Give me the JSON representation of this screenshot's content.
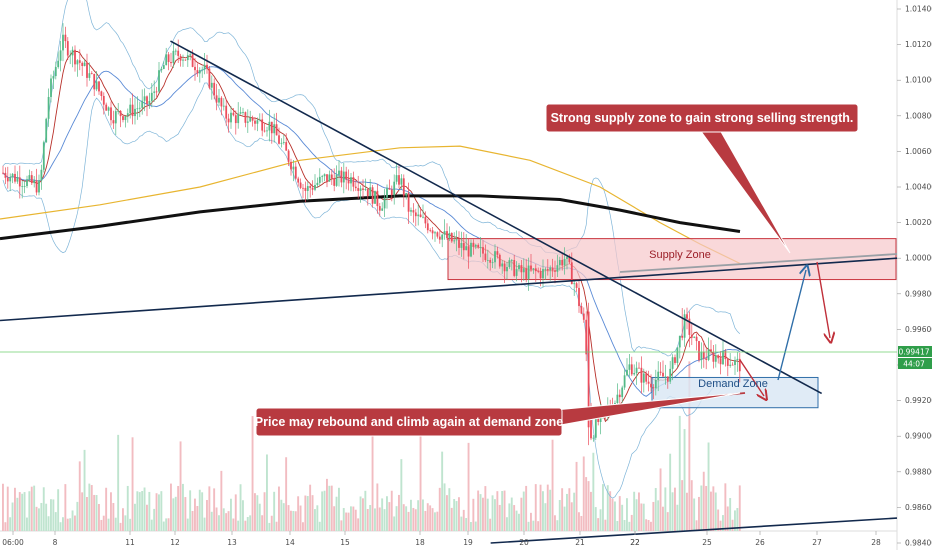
{
  "chart_data": {
    "type": "candlestick",
    "y_axis": {
      "ticks": [
        "1.01400",
        "1.01200",
        "1.01000",
        "1.00800",
        "1.00600",
        "1.00400",
        "1.00200",
        "1.00000",
        "0.99800",
        "0.99600",
        "0.99400",
        "0.99200",
        "0.99000",
        "0.98800",
        "0.98600",
        "0.98400"
      ],
      "range": [
        0.984,
        1.0145
      ]
    },
    "x_axis": {
      "ticks": [
        "06:00",
        "8",
        "11",
        "12",
        "13",
        "14",
        "15",
        "18",
        "19",
        "20",
        "21",
        "22",
        "22",
        "25",
        "26",
        "27",
        "28"
      ]
    },
    "current_price": "0.99417",
    "countdown": "44:07",
    "annotations": {
      "supply_callout": "Strong supply zone to gain strong selling strength.",
      "supply_zone": "Supply Zone",
      "demand_zone": "Demand Zone",
      "demand_callout": "Price may rebound and climb again at demand zone"
    },
    "zones": {
      "supply": {
        "price_top": 1.0011,
        "price_bottom": 0.9988
      },
      "demand": {
        "price_top": 0.9933,
        "price_bottom": 0.9916
      }
    },
    "trendlines": [
      {
        "name": "descending-resistance",
        "from": {
          "x_frac": 0.19,
          "price": 1.0122
        },
        "to": {
          "x_frac": 0.916,
          "price": 0.9924
        }
      },
      {
        "name": "ascending-support",
        "from": {
          "x_frac": 0.0,
          "price": 0.9965
        },
        "to": {
          "x_frac": 1.0,
          "price": 1.0
        }
      },
      {
        "name": "bottom-line",
        "from": {
          "x_frac": 0.547,
          "price": 0.984
        },
        "to": {
          "x_frac": 1.0,
          "price": 0.9854
        }
      }
    ],
    "colors": {
      "bull": "#53b987",
      "bear": "#eb4d5c",
      "sma_fast": "#b8302a",
      "sma_mid": "#5b8bd6",
      "sma_slow": "#e8b530",
      "sma_long": "#111111",
      "bollinger": "#7fb5d8",
      "supply_fill": "#f6c7cb",
      "supply_stroke": "#c9343e",
      "demand_fill": "#d8e6f4",
      "demand_stroke": "#2f6ea8",
      "callout_fill": "#b83a40",
      "trendline": "#12294d",
      "price_line": "#6fcf6f"
    }
  }
}
